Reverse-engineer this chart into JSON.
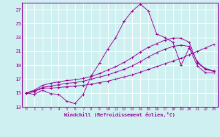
{
  "bg_color": "#cff0f0",
  "grid_color": "#ffffff",
  "line_color": "#990099",
  "marker": "+",
  "xlabel": "Windchill (Refroidissement éolien,°C)",
  "xlim": [
    -0.5,
    23.5
  ],
  "ylim": [
    13,
    28
  ],
  "yticks": [
    13,
    15,
    17,
    19,
    21,
    23,
    25,
    27
  ],
  "xticks": [
    0,
    1,
    2,
    3,
    4,
    5,
    6,
    7,
    8,
    9,
    10,
    11,
    12,
    13,
    14,
    15,
    16,
    17,
    18,
    19,
    20,
    21,
    22,
    23
  ],
  "series": [
    [
      15.0,
      14.8,
      15.4,
      14.9,
      14.8,
      13.8,
      13.5,
      14.8,
      17.5,
      19.3,
      21.3,
      23.0,
      25.3,
      26.8,
      27.8,
      26.8,
      23.5,
      23.0,
      22.3,
      19.0,
      21.5,
      18.9,
      17.9,
      17.9
    ],
    [
      15.0,
      15.3,
      15.8,
      16.0,
      16.2,
      16.4,
      16.5,
      16.7,
      17.0,
      17.3,
      17.6,
      18.0,
      18.4,
      18.9,
      19.5,
      20.2,
      20.8,
      21.3,
      21.7,
      21.9,
      21.7,
      19.5,
      18.5,
      18.2
    ],
    [
      15.0,
      15.4,
      16.1,
      16.4,
      16.6,
      16.8,
      16.9,
      17.1,
      17.4,
      17.8,
      18.3,
      18.8,
      19.4,
      20.1,
      20.9,
      21.6,
      22.1,
      22.6,
      22.9,
      22.9,
      22.3,
      19.3,
      18.4,
      18.1
    ],
    [
      15.0,
      15.2,
      15.7,
      15.7,
      15.8,
      15.9,
      16.0,
      16.1,
      16.3,
      16.5,
      16.7,
      17.0,
      17.3,
      17.6,
      18.0,
      18.4,
      18.8,
      19.2,
      19.6,
      20.0,
      20.5,
      21.0,
      21.5,
      22.0
    ]
  ]
}
